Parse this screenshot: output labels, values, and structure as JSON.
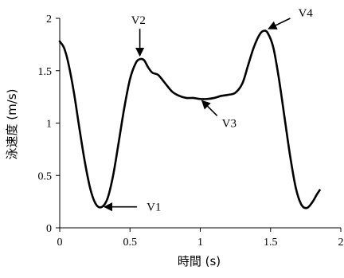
{
  "chart_data": {
    "type": "line",
    "title": "",
    "xlabel": "時間 (s)",
    "ylabel": "泳速度 (m/s)",
    "xlim": [
      0,
      2
    ],
    "ylim": [
      0,
      2
    ],
    "xticks": [
      "0",
      "0.5",
      "1",
      "1.5",
      "2"
    ],
    "yticks": [
      "0",
      "0.5",
      "1",
      "1.5",
      "2"
    ],
    "grid": false,
    "legend": "none",
    "line_color": "#000000",
    "series": [
      {
        "x": [
          0.0,
          0.03,
          0.06,
          0.1,
          0.14,
          0.18,
          0.22,
          0.26,
          0.3,
          0.34,
          0.38,
          0.42,
          0.46,
          0.5,
          0.54,
          0.57,
          0.6,
          0.63,
          0.66,
          0.7,
          0.75,
          0.8,
          0.85,
          0.9,
          0.95,
          1.0,
          1.05,
          1.1,
          1.15,
          1.2,
          1.25,
          1.3,
          1.34,
          1.38,
          1.42,
          1.45,
          1.48,
          1.52,
          1.56,
          1.6,
          1.64,
          1.68,
          1.72,
          1.76,
          1.8,
          1.83,
          1.85
        ],
        "values": [
          1.78,
          1.72,
          1.58,
          1.3,
          0.95,
          0.62,
          0.36,
          0.22,
          0.2,
          0.28,
          0.5,
          0.82,
          1.15,
          1.42,
          1.57,
          1.61,
          1.6,
          1.53,
          1.48,
          1.46,
          1.38,
          1.3,
          1.26,
          1.24,
          1.24,
          1.23,
          1.23,
          1.24,
          1.26,
          1.27,
          1.29,
          1.38,
          1.55,
          1.72,
          1.84,
          1.88,
          1.86,
          1.72,
          1.42,
          1.05,
          0.68,
          0.38,
          0.22,
          0.19,
          0.25,
          0.32,
          0.36
        ]
      }
    ],
    "annotations": [
      {
        "label": "V1",
        "x": 0.3,
        "y": 0.2,
        "arrow_from": [
          0.55,
          0.2
        ]
      },
      {
        "label": "V2",
        "x": 0.57,
        "y": 1.62,
        "arrow_from": [
          0.57,
          1.9
        ]
      },
      {
        "label": "V3",
        "x": 1.0,
        "y": 1.23,
        "arrow_from": [
          1.12,
          1.07
        ]
      },
      {
        "label": "V4",
        "x": 1.47,
        "y": 1.89,
        "arrow_from": [
          1.64,
          2.0
        ]
      }
    ]
  }
}
